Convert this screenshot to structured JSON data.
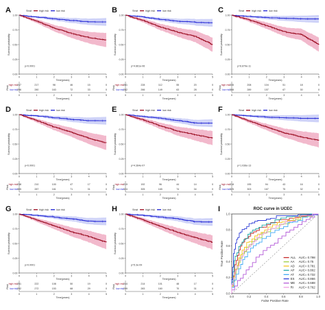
{
  "figure": {
    "panel_letters": [
      "A",
      "B",
      "C",
      "D",
      "E",
      "F",
      "G",
      "H",
      "I"
    ]
  },
  "km_panels": [
    {
      "letter": "A",
      "strata_title": "Strat",
      "risk_title": "Risk",
      "high_label": "high risk",
      "low_label": "low risk",
      "pvalue": "p<0.0001",
      "row_high": [
        "247",
        "217",
        "98",
        "46",
        "15",
        "0"
      ],
      "row_low": [
        "296",
        "280",
        "163",
        "72",
        "33",
        "0"
      ]
    },
    {
      "letter": "B",
      "strata_title": "Strat",
      "risk_title": "Risk",
      "high_label": "high risk",
      "low_label": "low risk",
      "pvalue": "p=4.861e-06",
      "row_high": [
        "261",
        "228",
        "112",
        "55",
        "20",
        "0"
      ],
      "row_low": [
        "282",
        "266",
        "149",
        "63",
        "28",
        "0"
      ]
    },
    {
      "letter": "C",
      "strata_title": "Strat",
      "risk_title": "Risk",
      "high_label": "high risk",
      "low_label": "low risk",
      "pvalue": "p=6.879e-11",
      "row_high": [
        "235",
        "208",
        "104",
        "51",
        "18",
        "0"
      ],
      "row_low": [
        "308",
        "289",
        "157",
        "67",
        "30",
        "0"
      ]
    },
    {
      "letter": "D",
      "strata_title": "Strat",
      "risk_title": "Risk",
      "high_label": "high risk",
      "low_label": "low risk",
      "pvalue": "p<0.0001",
      "row_high": [
        "238",
        "210",
        "100",
        "47",
        "17",
        "0"
      ],
      "row_low": [
        "305",
        "287",
        "161",
        "71",
        "31",
        "0"
      ]
    },
    {
      "letter": "E",
      "strata_title": "Strat",
      "risk_title": "Risk",
      "high_label": "high risk",
      "low_label": "low risk",
      "pvalue": "p=4.364e-07",
      "row_high": [
        "219",
        "192",
        "96",
        "44",
        "14",
        "0"
      ],
      "row_low": [
        "324",
        "305",
        "165",
        "74",
        "34",
        "0"
      ]
    },
    {
      "letter": "F",
      "strata_title": "Strat",
      "risk_title": "Risk",
      "high_label": "high risk",
      "low_label": "low risk",
      "pvalue": "p=1.036e-13",
      "row_high": [
        "218",
        "195",
        "94",
        "43",
        "16",
        "0"
      ],
      "row_low": [
        "325",
        "303",
        "167",
        "75",
        "32",
        "0"
      ]
    },
    {
      "letter": "G",
      "strata_title": "Strat",
      "risk_title": "Risk",
      "high_label": "high risk",
      "low_label": "low risk",
      "pvalue": "p<0.0001",
      "row_high": [
        "251",
        "222",
        "108",
        "50",
        "19",
        "0"
      ],
      "row_low": [
        "292",
        "272",
        "153",
        "68",
        "29",
        "0"
      ]
    },
    {
      "letter": "H",
      "strata_title": "Strat",
      "risk_title": "Risk",
      "high_label": "high risk",
      "low_label": "low risk",
      "pvalue": "p=5.3e-09",
      "row_high": [
        "244",
        "214",
        "101",
        "48",
        "17",
        "0"
      ],
      "row_low": [
        "299",
        "283",
        "160",
        "70",
        "31",
        "0"
      ]
    }
  ],
  "shared": {
    "ylabel": "Survival probability",
    "xlabel": "Time(years)",
    "y_ticks": [
      "0.00",
      "0.25",
      "0.50",
      "0.75",
      "1.00"
    ],
    "x_ticks": [
      "0",
      "1",
      "2",
      "3",
      "4",
      "5"
    ]
  },
  "roc": {
    "title": "ROC curve in UCEC",
    "xlabel": "False Positive Rate",
    "ylabel": "True Positive Rate",
    "ticks": [
      "0.0",
      "0.2",
      "0.4",
      "0.6",
      "0.8",
      "1.0"
    ],
    "legend": [
      {
        "name": "ALL",
        "auc": "AUC= 0.798",
        "color": "#c62828"
      },
      {
        "name": "AA",
        "auc": "AUC= 0.75",
        "color": "#9ccc3c"
      },
      {
        "name": "AD",
        "auc": "AUC= 0.781",
        "color": "#f2c21b"
      },
      {
        "name": "AP",
        "auc": "AUC= 0.802",
        "color": "#1ea6a6"
      },
      {
        "name": "AT",
        "auc": "AUC= 0.732",
        "color": "#3fa9f5"
      },
      {
        "name": "ES",
        "auc": "AUC= 0.866",
        "color": "#2b3bd6"
      },
      {
        "name": "ME",
        "auc": "AUC= 0.688",
        "color": "#b35ad8"
      },
      {
        "name": "RI",
        "auc": "AUC= 0.762",
        "color": "#ef9ae3"
      }
    ]
  },
  "chart_data": [
    {
      "type": "line",
      "panel": "A",
      "x": [
        0,
        1,
        2,
        3,
        4,
        5
      ],
      "series": [
        {
          "name": "high risk",
          "values": [
            1.0,
            0.9,
            0.78,
            0.69,
            0.62,
            0.58
          ]
        },
        {
          "name": "low risk",
          "values": [
            1.0,
            0.97,
            0.94,
            0.91,
            0.89,
            0.89
          ]
        }
      ],
      "ylim": [
        0,
        1
      ],
      "xlim": [
        0,
        5
      ]
    },
    {
      "type": "line",
      "panel": "B",
      "x": [
        0,
        1,
        2,
        3,
        4,
        5
      ],
      "series": [
        {
          "name": "high risk",
          "values": [
            1.0,
            0.91,
            0.8,
            0.71,
            0.64,
            0.5
          ]
        },
        {
          "name": "low risk",
          "values": [
            1.0,
            0.97,
            0.93,
            0.9,
            0.88,
            0.87
          ]
        }
      ],
      "ylim": [
        0,
        1
      ],
      "xlim": [
        0,
        5
      ]
    },
    {
      "type": "line",
      "panel": "C",
      "x": [
        0,
        1,
        2,
        3,
        4,
        5
      ],
      "series": [
        {
          "name": "high risk",
          "values": [
            1.0,
            0.92,
            0.82,
            0.72,
            0.67,
            0.5
          ]
        },
        {
          "name": "low risk",
          "values": [
            1.0,
            0.98,
            0.96,
            0.95,
            0.94,
            0.94
          ]
        }
      ],
      "ylim": [
        0,
        1
      ],
      "xlim": [
        0,
        5
      ]
    },
    {
      "type": "line",
      "panel": "D",
      "x": [
        0,
        1,
        2,
        3,
        4,
        5
      ],
      "series": [
        {
          "name": "high risk",
          "values": [
            1.0,
            0.9,
            0.79,
            0.7,
            0.6,
            0.52
          ]
        },
        {
          "name": "low risk",
          "values": [
            1.0,
            0.98,
            0.95,
            0.92,
            0.9,
            0.9
          ]
        }
      ],
      "ylim": [
        0,
        1
      ],
      "xlim": [
        0,
        5
      ]
    },
    {
      "type": "line",
      "panel": "E",
      "x": [
        0,
        1,
        2,
        3,
        4,
        5
      ],
      "series": [
        {
          "name": "high risk",
          "values": [
            1.0,
            0.91,
            0.81,
            0.72,
            0.66,
            0.6
          ]
        },
        {
          "name": "low risk",
          "values": [
            1.0,
            0.97,
            0.94,
            0.9,
            0.86,
            0.86
          ]
        }
      ],
      "ylim": [
        0,
        1
      ],
      "xlim": [
        0,
        5
      ]
    },
    {
      "type": "line",
      "panel": "F",
      "x": [
        0,
        1,
        2,
        3,
        4,
        5
      ],
      "series": [
        {
          "name": "high risk",
          "values": [
            1.0,
            0.89,
            0.79,
            0.69,
            0.62,
            0.56
          ]
        },
        {
          "name": "low risk",
          "values": [
            1.0,
            0.98,
            0.96,
            0.95,
            0.94,
            0.94
          ]
        }
      ],
      "ylim": [
        0,
        1
      ],
      "xlim": [
        0,
        5
      ]
    },
    {
      "type": "line",
      "panel": "G",
      "x": [
        0,
        1,
        2,
        3,
        4,
        5
      ],
      "series": [
        {
          "name": "high risk",
          "values": [
            1.0,
            0.9,
            0.8,
            0.7,
            0.62,
            0.52
          ]
        },
        {
          "name": "low risk",
          "values": [
            1.0,
            0.98,
            0.95,
            0.92,
            0.88,
            0.88
          ]
        }
      ],
      "ylim": [
        0,
        1
      ],
      "xlim": [
        0,
        5
      ]
    },
    {
      "type": "line",
      "panel": "H",
      "x": [
        0,
        1,
        2,
        3,
        4,
        5
      ],
      "series": [
        {
          "name": "high risk",
          "values": [
            1.0,
            0.9,
            0.79,
            0.69,
            0.6,
            0.52
          ]
        },
        {
          "name": "low risk",
          "values": [
            1.0,
            0.98,
            0.95,
            0.92,
            0.87,
            0.87
          ]
        }
      ],
      "ylim": [
        0,
        1
      ],
      "xlim": [
        0,
        5
      ]
    },
    {
      "type": "line",
      "panel": "I",
      "title": "ROC curve in UCEC",
      "xlabel": "False Positive Rate",
      "ylabel": "True Positive Rate",
      "xlim": [
        0,
        1
      ],
      "ylim": [
        0,
        1
      ],
      "series": [
        {
          "name": "ALL",
          "x": [
            0,
            0.05,
            0.1,
            0.15,
            0.22,
            0.32,
            0.45,
            0.6,
            0.8,
            1
          ],
          "values": [
            0,
            0.35,
            0.55,
            0.66,
            0.73,
            0.8,
            0.86,
            0.92,
            0.97,
            1
          ]
        },
        {
          "name": "AA",
          "x": [
            0,
            0.05,
            0.12,
            0.2,
            0.3,
            0.45,
            0.6,
            0.8,
            1
          ],
          "values": [
            0,
            0.25,
            0.45,
            0.58,
            0.68,
            0.78,
            0.86,
            0.94,
            1
          ]
        },
        {
          "name": "AD",
          "x": [
            0,
            0.06,
            0.12,
            0.2,
            0.3,
            0.42,
            0.58,
            0.78,
            1
          ],
          "values": [
            0,
            0.3,
            0.5,
            0.63,
            0.72,
            0.8,
            0.88,
            0.95,
            1
          ]
        },
        {
          "name": "AP",
          "x": [
            0,
            0.04,
            0.1,
            0.16,
            0.24,
            0.35,
            0.5,
            0.7,
            1
          ],
          "values": [
            0,
            0.4,
            0.58,
            0.68,
            0.76,
            0.83,
            0.9,
            0.96,
            1
          ]
        },
        {
          "name": "AT",
          "x": [
            0,
            0.08,
            0.15,
            0.25,
            0.35,
            0.5,
            0.65,
            0.82,
            1
          ],
          "values": [
            0,
            0.25,
            0.42,
            0.56,
            0.66,
            0.76,
            0.85,
            0.93,
            1
          ]
        },
        {
          "name": "ES",
          "x": [
            0,
            0.03,
            0.07,
            0.12,
            0.2,
            0.3,
            0.45,
            0.65,
            1
          ],
          "values": [
            0,
            0.5,
            0.68,
            0.78,
            0.85,
            0.9,
            0.94,
            0.98,
            1
          ]
        },
        {
          "name": "ME",
          "x": [
            0,
            0.1,
            0.2,
            0.32,
            0.45,
            0.58,
            0.72,
            0.86,
            1
          ],
          "values": [
            0,
            0.15,
            0.3,
            0.45,
            0.58,
            0.68,
            0.8,
            0.9,
            1
          ]
        },
        {
          "name": "RI",
          "x": [
            0,
            0.06,
            0.14,
            0.22,
            0.32,
            0.46,
            0.62,
            0.8,
            1
          ],
          "values": [
            0,
            0.3,
            0.48,
            0.6,
            0.7,
            0.79,
            0.87,
            0.95,
            1
          ]
        }
      ]
    }
  ]
}
